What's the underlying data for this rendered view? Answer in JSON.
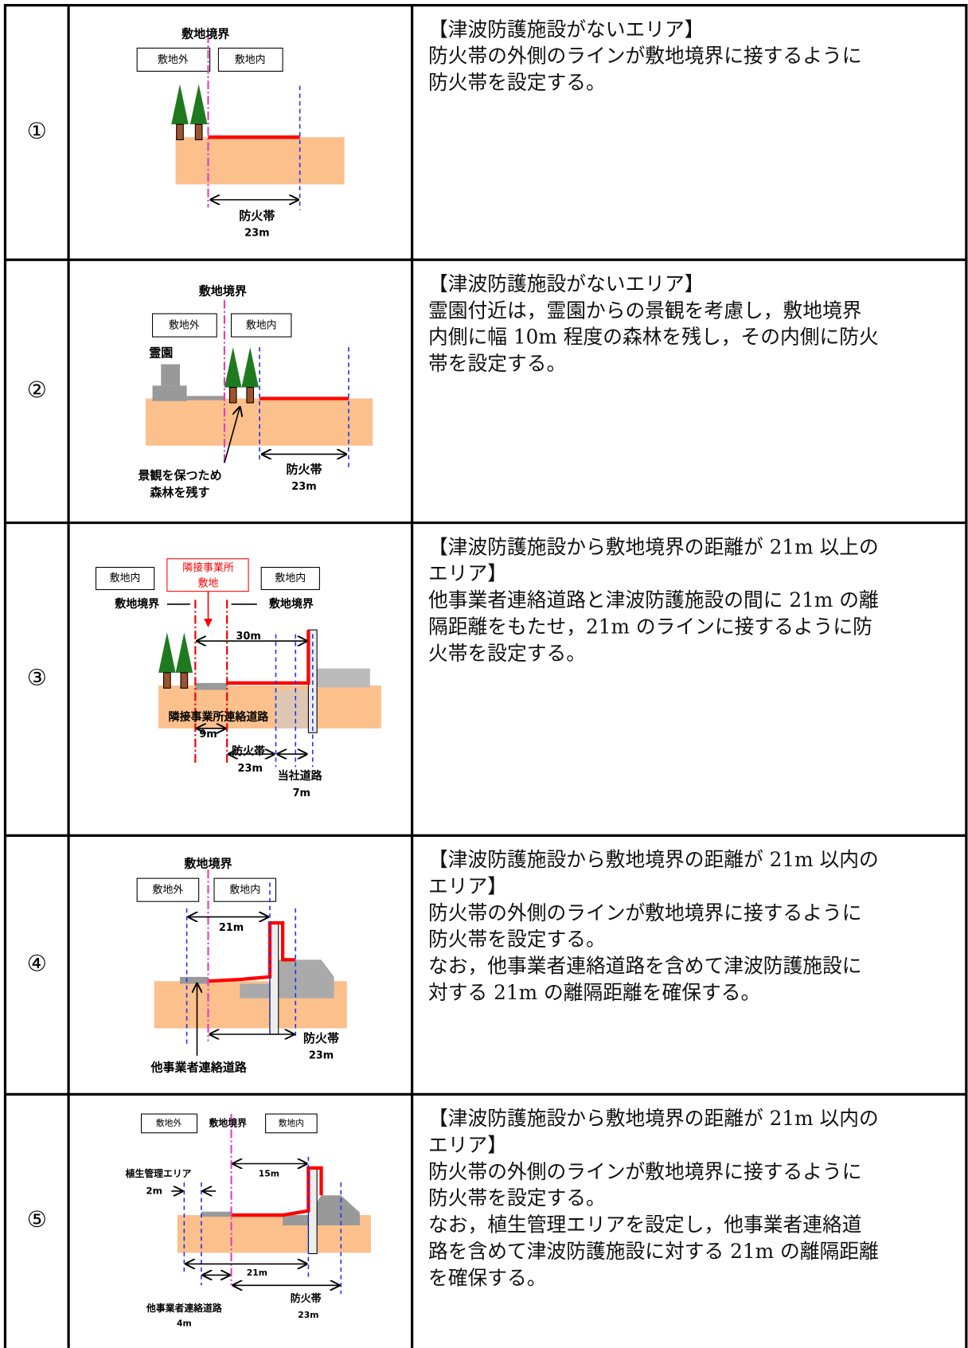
{
  "rows": [
    {
      "number": "①",
      "labels": [
        "敷地境界",
        "敷地外",
        "敷地内",
        "防火帯",
        "23m"
      ],
      "text": [
        "【津波防護施設がないエリア】",
        "防火帯の外側のラインが敷地境界に接するように",
        "防火帯を設定する。"
      ]
    },
    {
      "number": "②",
      "labels": [
        "敷地境界",
        "敷地外",
        "敷地内",
        "霊園",
        "景観を保つため",
        "森林を残す",
        "防火帯",
        "23m"
      ],
      "text": [
        "【津波防護施設がないエリア】",
        "霊園付近は，霊園からの景観を考慮し，敷地境界",
        "内側に幅 10m 程度の森林を残し，その内側に防火",
        "帯を設定する。"
      ]
    },
    {
      "number": "③",
      "labels": [
        "敷地内",
        "隣接事業所",
        "敷地",
        "敷地内",
        "敷地境界",
        "敷地境界",
        "30m",
        "隣接事業所連絡道路",
        "9m",
        "防火帯",
        "23m",
        "当社道路",
        "7m"
      ],
      "text": [
        "【津波防護施設から敷地境界の距離が 21m 以上の",
        "エリア】",
        "他事業者連絡道路と津波防護施設の間に 21m の離",
        "隔距離をもたせ，21m のラインに接するように防",
        "火帯を設定する。"
      ]
    },
    {
      "number": "④",
      "labels": [
        "敷地境界",
        "敷地外",
        "敷地内",
        "21m",
        "他事業者連絡道路",
        "防火帯",
        "23m"
      ],
      "text": [
        "【津波防護施設から敷地境界の距離が 21m 以内の",
        "エリア】",
        "防火帯の外側のラインが敷地境界に接するように",
        "防火帯を設定する。",
        "なお，他事業者連絡道路を含めて津波防護施設に",
        "対する 21m の離隔距離を確保する。"
      ]
    },
    {
      "number": "⑤",
      "labels": [
        "敷地外",
        "敷地境界",
        "敷地内",
        "植生管理エリア",
        "2m",
        "15m",
        "21m",
        "他事業者連絡道路",
        "4m",
        "防火帯",
        "23m"
      ],
      "text": [
        "【津波防護施設から敷地境界の距離が 21m 以内の",
        "エリア】",
        "防火帯の外側のラインが敷地境界に接するように",
        "防火帯を設定する。",
        "なお，植生管理エリアを設定し，他事業者連絡道",
        "路を含めて津波防護施設に対する 21m の離隔距離",
        "を確保する。"
      ]
    }
  ]
}
